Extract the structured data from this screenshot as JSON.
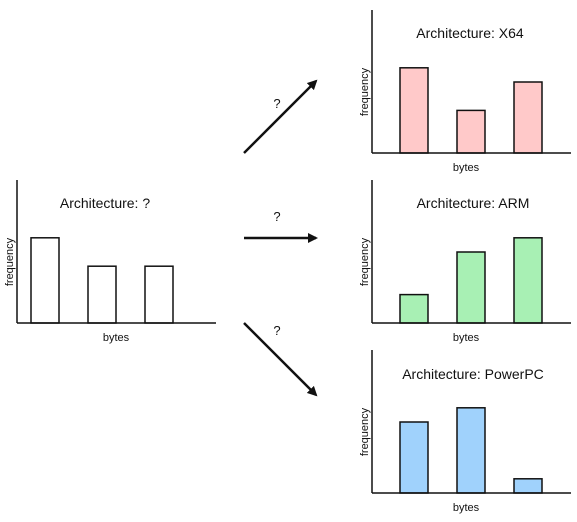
{
  "colors": {
    "axis": "#111111",
    "unknown_fill": "#ffffff",
    "x64_fill": "#ffc9c9",
    "arm_fill": "#a8f0b4",
    "ppc_fill": "#a0d2fc",
    "arrow": "#111111"
  },
  "arrows": [
    {
      "label": "?",
      "direction": "up-right"
    },
    {
      "label": "?",
      "direction": "right"
    },
    {
      "label": "?",
      "direction": "down-right"
    }
  ],
  "chart_data": [
    {
      "id": "unknown",
      "type": "bar",
      "title": "Architecture: ?",
      "xlabel": "bytes",
      "ylabel": "frequency",
      "categories": [
        "",
        "",
        ""
      ],
      "values": [
        0.6,
        0.4,
        0.4
      ],
      "ylim": [
        0,
        1
      ]
    },
    {
      "id": "x64",
      "type": "bar",
      "title": "Architecture: X64",
      "xlabel": "bytes",
      "ylabel": "frequency",
      "categories": [
        "",
        "",
        ""
      ],
      "values": [
        0.6,
        0.3,
        0.5
      ],
      "ylim": [
        0,
        1
      ]
    },
    {
      "id": "arm",
      "type": "bar",
      "title": "Architecture: ARM",
      "xlabel": "bytes",
      "ylabel": "frequency",
      "categories": [
        "",
        "",
        ""
      ],
      "values": [
        0.2,
        0.5,
        0.6
      ],
      "ylim": [
        0,
        1
      ]
    },
    {
      "id": "ppc",
      "type": "bar",
      "title": "Architecture: PowerPC",
      "xlabel": "bytes",
      "ylabel": "frequency",
      "categories": [
        "",
        "",
        ""
      ],
      "values": [
        0.5,
        0.6,
        0.1
      ],
      "ylim": [
        0,
        1
      ]
    }
  ]
}
